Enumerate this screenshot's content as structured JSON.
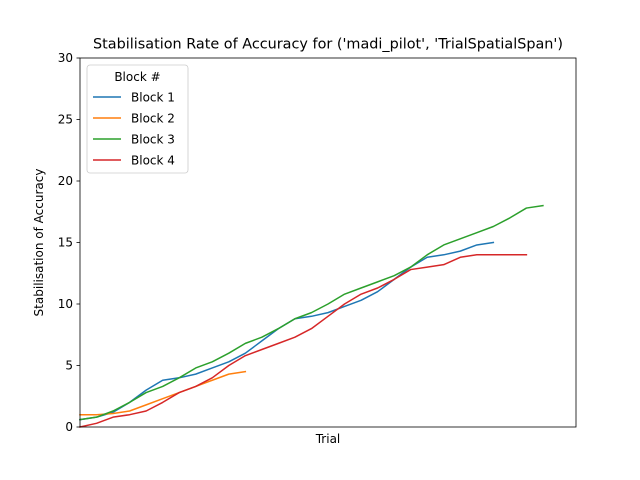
{
  "chart_data": {
    "type": "line",
    "title": "Stabilisation Rate of Accuracy for ('madi_pilot', 'TrialSpatialSpan')",
    "xlabel": "Trial",
    "ylabel": "Stabilisation of Accuracy",
    "ylim": [
      0,
      30
    ],
    "xlim": [
      0,
      30
    ],
    "yticks": [
      "0",
      "5",
      "10",
      "15",
      "20",
      "25",
      "30"
    ],
    "x_tick_labels_shown": false,
    "grid": false,
    "legend": {
      "title": "Block #",
      "placement": "top-left"
    },
    "series": [
      {
        "name": "Block 1",
        "color": "#1f77b4",
        "x": [
          0,
          1,
          2,
          3,
          4,
          5,
          6,
          7,
          8,
          9,
          10,
          11,
          12,
          13,
          14,
          15,
          16,
          17,
          18,
          19,
          20,
          21,
          22,
          23,
          24,
          25
        ],
        "values": [
          0.6,
          0.8,
          1.2,
          2.0,
          3.0,
          3.8,
          4.0,
          4.3,
          4.8,
          5.3,
          6.0,
          7.0,
          8.0,
          8.8,
          9.0,
          9.3,
          9.8,
          10.3,
          11.0,
          12.0,
          13.0,
          13.8,
          14.0,
          14.3,
          14.8,
          15.0
        ]
      },
      {
        "name": "Block 2",
        "color": "#ff7f0e",
        "x": [
          0,
          1,
          2,
          3,
          4,
          5,
          6,
          7,
          8,
          9,
          10
        ],
        "values": [
          1.0,
          1.0,
          1.1,
          1.3,
          1.8,
          2.3,
          2.8,
          3.3,
          3.8,
          4.3,
          4.5
        ]
      },
      {
        "name": "Block 3",
        "color": "#2ca02c",
        "x": [
          0,
          1,
          2,
          3,
          4,
          5,
          6,
          7,
          8,
          9,
          10,
          11,
          12,
          13,
          14,
          15,
          16,
          17,
          18,
          19,
          20,
          21,
          22,
          23,
          24,
          25,
          26,
          27,
          28
        ],
        "values": [
          0.6,
          0.8,
          1.3,
          2.0,
          2.8,
          3.3,
          4.0,
          4.8,
          5.3,
          6.0,
          6.8,
          7.3,
          8.0,
          8.8,
          9.3,
          10.0,
          10.8,
          11.3,
          11.8,
          12.3,
          13.0,
          14.0,
          14.8,
          15.3,
          15.8,
          16.3,
          17.0,
          17.8,
          18.0
        ]
      },
      {
        "name": "Block 4",
        "color": "#d62728",
        "x": [
          0,
          1,
          2,
          3,
          4,
          5,
          6,
          7,
          8,
          9,
          10,
          11,
          12,
          13,
          14,
          15,
          16,
          17,
          18,
          19,
          20,
          21,
          22,
          23,
          24,
          25,
          26,
          27
        ],
        "values": [
          0.0,
          0.3,
          0.8,
          1.0,
          1.3,
          2.0,
          2.8,
          3.3,
          4.0,
          5.0,
          5.8,
          6.3,
          6.8,
          7.3,
          8.0,
          9.0,
          10.0,
          10.8,
          11.3,
          12.0,
          12.8,
          13.0,
          13.2,
          13.8,
          14.0,
          14.0,
          14.0,
          14.0
        ]
      }
    ]
  }
}
